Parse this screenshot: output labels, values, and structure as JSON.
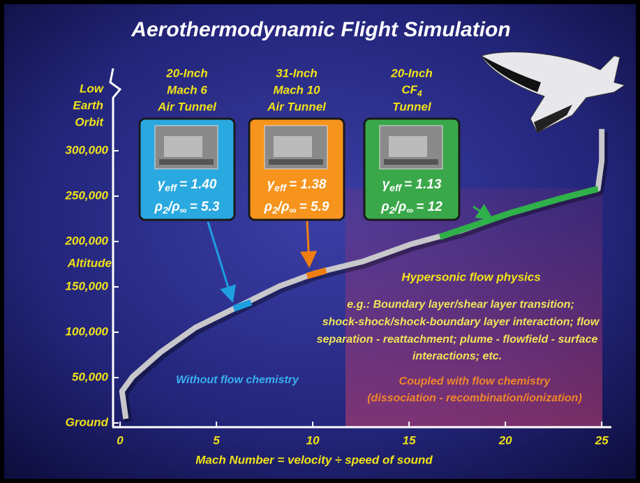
{
  "chart_data": {
    "type": "line",
    "title": "Aerothermodynamic Flight Simulation",
    "x_label": "Mach Number = velocity ÷ speed of sound",
    "y_label": "Altitude",
    "y_top_label": [
      "Low",
      "Earth",
      "Orbit"
    ],
    "xlim": [
      -0.4,
      25.5
    ],
    "ylim": [
      0,
      390000
    ],
    "xticks": [
      0,
      5,
      10,
      15,
      20,
      25
    ],
    "yticks": [
      {
        "value": 0,
        "label": "Ground"
      },
      {
        "value": 50000,
        "label": "50,000"
      },
      {
        "value": 100000,
        "label": "100,000"
      },
      {
        "value": 150000,
        "label": "150,000"
      },
      {
        "value": 200000,
        "label": "200,000"
      },
      {
        "value": 250000,
        "label": "250,000"
      },
      {
        "value": 300000,
        "label": "300,000"
      }
    ],
    "series": [
      {
        "color": "#c8c8cc",
        "x": [
          0.3,
          0.1,
          0.65,
          2.1,
          3.9,
          6.1,
          8.3,
          10.1,
          12.6,
          15.1,
          17.7,
          20.2,
          22.8,
          24.8,
          25,
          25
        ],
        "values": [
          4600,
          35000,
          51000,
          78000,
          105000,
          128000,
          151000,
          165000,
          178000,
          197000,
          212000,
          231000,
          247000,
          258000,
          289000,
          324000
        ]
      },
      {
        "color": "#1e9fe0",
        "x": [
          5.9,
          6.8
        ],
        "values": [
          126000,
          133000
        ]
      },
      {
        "color": "#f07e12",
        "x": [
          9.7,
          10.7
        ],
        "values": [
          162000,
          168000
        ]
      },
      {
        "color": "#2fb04a",
        "x": [
          16.6,
          20.2,
          22.8,
          24.8
        ],
        "values": [
          205000,
          231000,
          247000,
          258000
        ]
      }
    ],
    "tunnels": [
      {
        "color": "#2aa8e0",
        "title": [
          "20-Inch",
          "Mach 6",
          "Air Tunnel"
        ],
        "gamma": "= 1.40",
        "ratio": "= 5.3"
      },
      {
        "color": "#f7941d",
        "title": [
          "31-Inch",
          "Mach 10",
          "Air Tunnel"
        ],
        "gamma": "= 1.38",
        "ratio": "= 5.9"
      },
      {
        "color": "#3aa84a",
        "title": [
          "20-Inch",
          {
            "text": "CF",
            "sub": "4"
          },
          "Tunnel"
        ],
        "gamma": "= 1.13",
        "ratio": "= 12"
      }
    ],
    "symbols": {
      "gamma": "γ",
      "eff": "eff",
      "rho": "ρ",
      "two": "2",
      "slash_rho": "/ρ",
      "inf": "∞"
    },
    "annotations": {
      "physics_title": "Hypersonic flow physics",
      "physics_lines": [
        "e.g.: Boundary layer/shear layer transition;",
        "shock-shock/shock-boundary layer interaction; flow",
        "separation - reattachment; plume - flowfield - surface",
        "interactions; etc."
      ],
      "without": "Without flow chemistry",
      "coupled": "Coupled with flow chemistry",
      "coupled_detail": "(dissociation - recombination/ionization)"
    }
  }
}
